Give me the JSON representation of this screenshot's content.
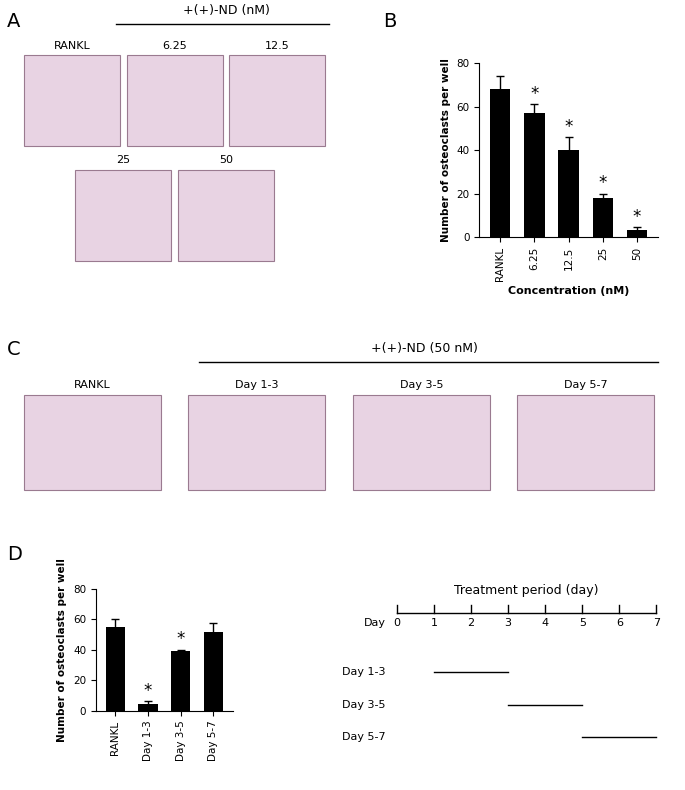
{
  "image_panels": [
    {
      "letter": "A",
      "header": "+(+)-ND (nM)",
      "labels": [
        "RANKL",
        "6.25",
        "12.5",
        "25",
        "50"
      ]
    },
    {
      "letter": "C",
      "header": "+(+)-ND (50 nM)",
      "labels": [
        "RANKL",
        "Day 1-3",
        "Day 3-5",
        "Day 5-7"
      ]
    }
  ],
  "chart_data": [
    {
      "letter": "B",
      "type": "bar",
      "categories": [
        "RANKL",
        "6.25",
        "12.5",
        "25",
        "50"
      ],
      "values": [
        68,
        57,
        40,
        18,
        3
      ],
      "errors": [
        6,
        4,
        6,
        2,
        1.5
      ],
      "annotations": [
        null,
        "*",
        "*",
        "*",
        "*"
      ],
      "color": "#000000",
      "x_label": "Concentration (nM)",
      "y_label": "Number of osteoclasts per well",
      "ylim": [
        0,
        80
      ],
      "yticks": [
        0,
        20,
        40,
        60,
        80
      ]
    },
    {
      "letter": "D",
      "type": "bar",
      "categories": [
        "RANKL",
        "Day 1-3",
        "Day 3-5",
        "Day 5-7"
      ],
      "values": [
        55,
        4.5,
        39,
        51.5
      ],
      "errors": [
        5,
        2,
        1,
        6
      ],
      "annotations": [
        null,
        "*",
        "*",
        null
      ],
      "color": "#000000",
      "y_label": "Number of osteoclasts per well",
      "ylim": [
        0,
        80
      ],
      "yticks": [
        0,
        20,
        40,
        60,
        80
      ]
    }
  ],
  "timeline": {
    "title": "Treatment period (day)",
    "axis_label": "Day",
    "ticks": [
      0,
      1,
      2,
      3,
      4,
      5,
      6,
      7
    ],
    "periods": [
      {
        "name": "Day 1-3",
        "start": 1,
        "end": 3
      },
      {
        "name": "Day 3-5",
        "start": 3,
        "end": 5
      },
      {
        "name": "Day 5-7",
        "start": 5,
        "end": 7
      }
    ]
  }
}
